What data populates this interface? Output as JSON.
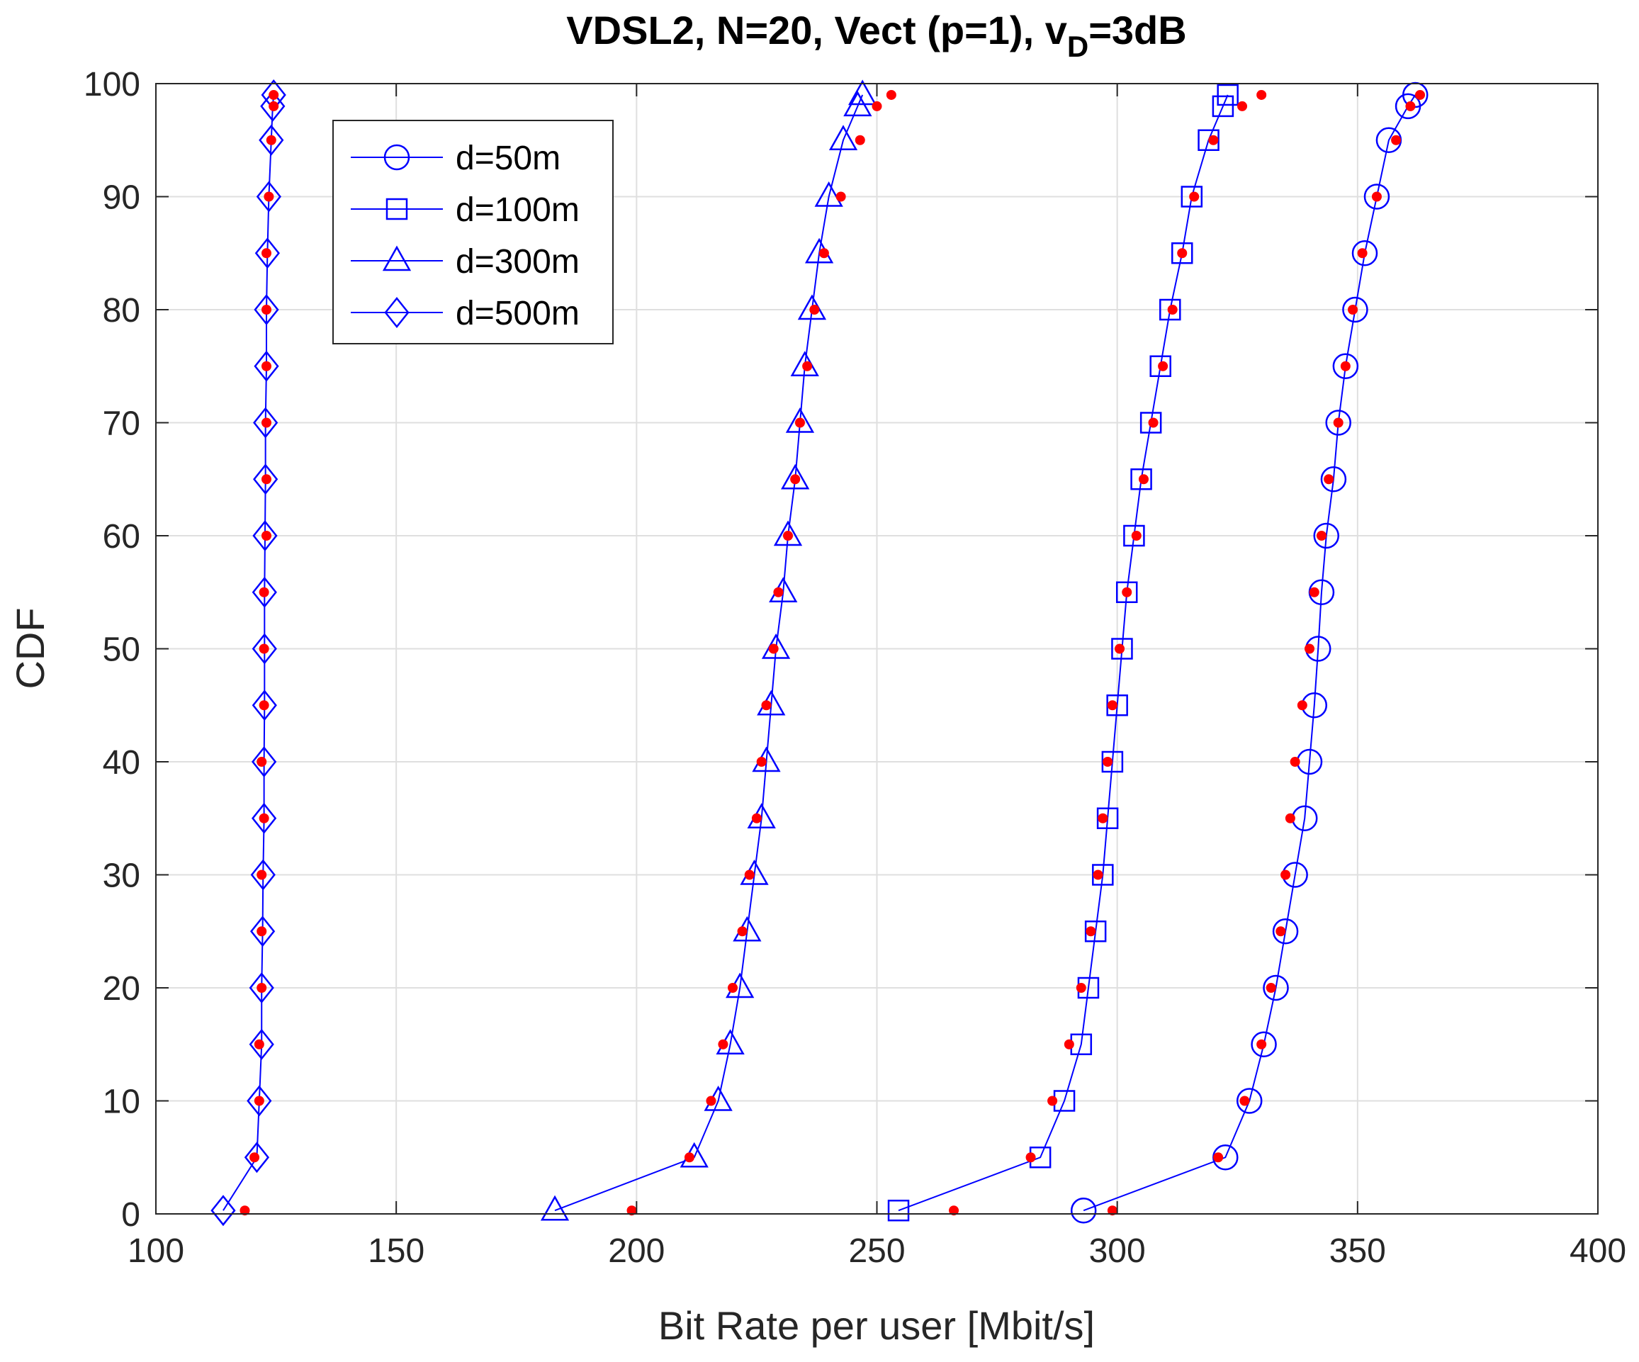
{
  "chart_data": {
    "type": "line",
    "title_main": "VDSL2, N=20, Vect (p=1), v",
    "title_sub": "D",
    "title_tail": "=3dB",
    "xlabel": "Bit Rate per user [Mbit/s]",
    "ylabel": "CDF",
    "xlim": [
      100,
      400
    ],
    "ylim": [
      0,
      100
    ],
    "xticks": [
      100,
      150,
      200,
      250,
      300,
      350,
      400
    ],
    "yticks": [
      0,
      10,
      20,
      30,
      40,
      50,
      60,
      70,
      80,
      90,
      100
    ],
    "grid": true,
    "legend_position": "top-left",
    "y": [
      0.3,
      5,
      10,
      15,
      20,
      25,
      30,
      35,
      40,
      45,
      50,
      55,
      60,
      65,
      70,
      75,
      80,
      85,
      90,
      95,
      98,
      99
    ],
    "series": [
      {
        "name": "d=50m",
        "marker": "circle",
        "color": "#0000ff",
        "x": [
          293,
          322.5,
          327.5,
          330.5,
          333,
          335,
          337,
          339,
          340,
          341,
          341.8,
          342.5,
          343.5,
          345,
          346,
          347.5,
          349.5,
          351.5,
          354,
          356.5,
          360.5,
          362
        ],
        "ref_x": [
          299,
          321,
          326.5,
          330,
          332,
          334,
          335,
          336,
          337,
          338.5,
          340,
          341,
          342.5,
          344,
          346,
          347.5,
          349,
          351,
          354,
          358,
          361,
          363
        ]
      },
      {
        "name": "d=100m",
        "marker": "square",
        "color": "#0000ff",
        "x": [
          254.5,
          284,
          289,
          292.5,
          294,
          295.5,
          297,
          298,
          299,
          300,
          301,
          302,
          303.5,
          305,
          307,
          309,
          311,
          313.5,
          315.5,
          319,
          322,
          323
        ],
        "ref_x": [
          266,
          282,
          286.5,
          290,
          292.5,
          294.5,
          296,
          297,
          298,
          299,
          300.5,
          302,
          304,
          305.5,
          307.5,
          309.5,
          311.5,
          313.5,
          316,
          320,
          326,
          330
        ]
      },
      {
        "name": "d=300m",
        "marker": "triangle",
        "color": "#0000ff",
        "x": [
          183,
          212,
          217,
          219.5,
          221.5,
          223,
          224.5,
          226,
          227,
          228,
          229,
          230.5,
          231.5,
          233,
          234,
          235,
          236.5,
          238,
          240,
          243,
          246,
          247
        ],
        "ref_x": [
          199,
          211,
          215.5,
          218,
          220,
          222,
          223.5,
          225,
          226,
          227,
          228.5,
          229.5,
          231.5,
          233,
          234,
          235.5,
          237,
          239,
          242.5,
          246.5,
          250,
          253
        ]
      },
      {
        "name": "d=500m",
        "marker": "diamond",
        "color": "#0000ff",
        "x": [
          114,
          121,
          121.5,
          122,
          122,
          122.2,
          122.3,
          122.5,
          122.5,
          122.6,
          122.6,
          122.6,
          122.7,
          122.8,
          122.8,
          123,
          123,
          123.2,
          123.5,
          124,
          124.3,
          124.5
        ],
        "ref_x": [
          118.5,
          120.5,
          121.5,
          121.5,
          122,
          122,
          122,
          122.5,
          122,
          122.5,
          122.5,
          122.5,
          123,
          123,
          123,
          123,
          123,
          123,
          123.5,
          124,
          124.5,
          124.5
        ]
      }
    ],
    "reference_points_color": "#ff0000"
  }
}
